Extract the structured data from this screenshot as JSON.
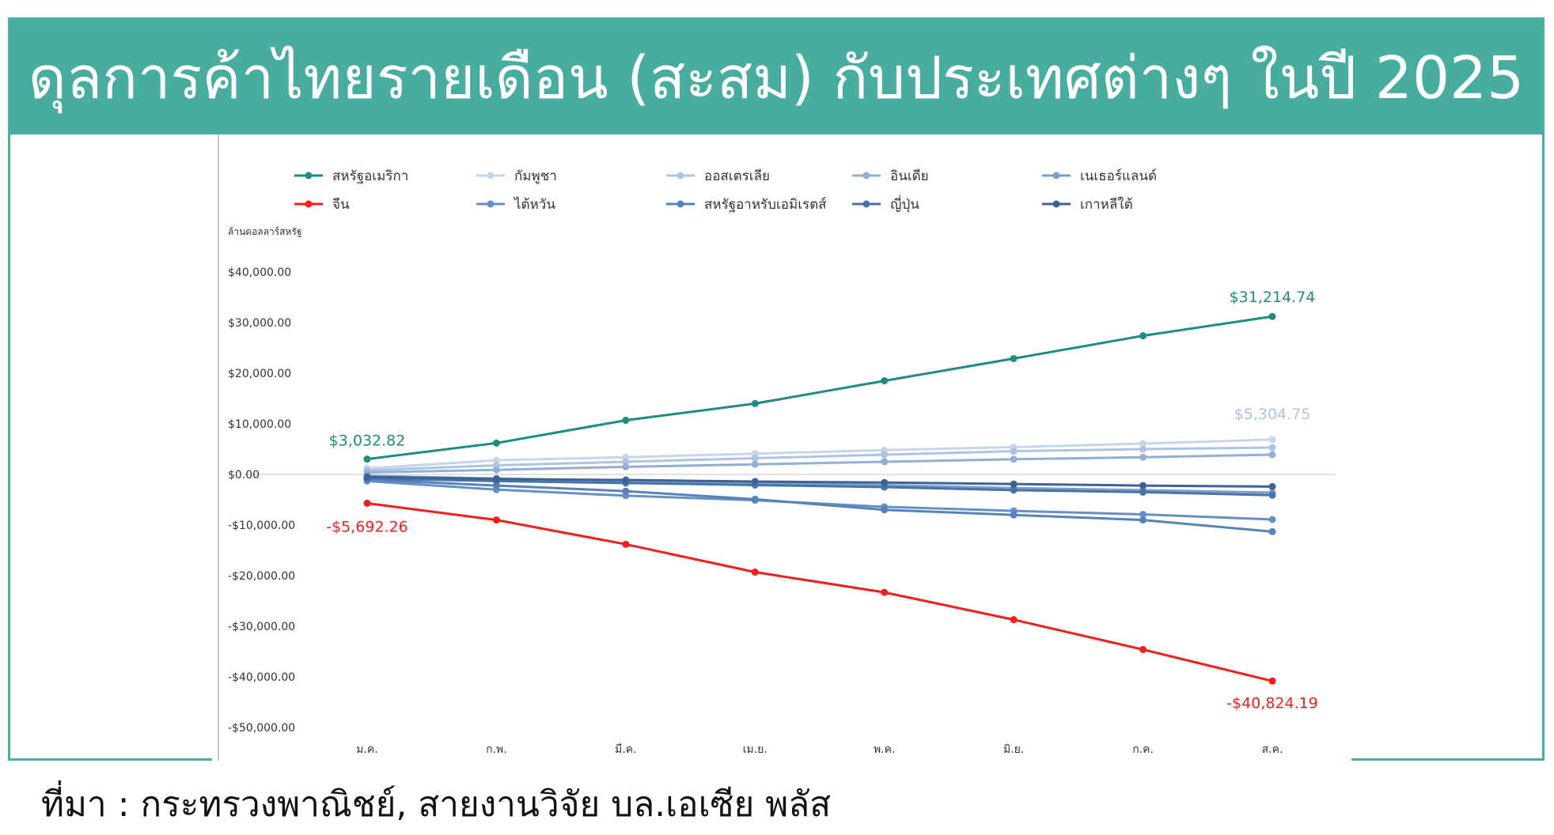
{
  "title": "ดุลการค้าไทยรายเดือน (สะสม) กับประเทศต่างๆ ในปี 2025",
  "source": "ที่มา : กระทรวงพาณิชย์, สายงานวิจัย บล.เอเซีย พลัส",
  "colors": {
    "title_bar": "#48ad9f",
    "usa": "#1e8c80",
    "china": "#f51d1d"
  },
  "chart_data": {
    "type": "line",
    "ylabel": "ล้านดอลลาร์สหรัฐ",
    "categories": [
      "ม.ค.",
      "ก.พ.",
      "มี.ค.",
      "เม.ย.",
      "พ.ค.",
      "มิ.ย.",
      "ก.ค.",
      "ส.ค."
    ],
    "ylim": [
      -50000,
      40000
    ],
    "yticks": [
      {
        "value": 40000,
        "label": "$40,000.00"
      },
      {
        "value": 30000,
        "label": "$30,000.00"
      },
      {
        "value": 20000,
        "label": "$20,000.00"
      },
      {
        "value": 10000,
        "label": "$10,000.00"
      },
      {
        "value": 0,
        "label": "$0.00"
      },
      {
        "value": -10000,
        "label": "-$10,000.00"
      },
      {
        "value": -20000,
        "label": "-$20,000.00"
      },
      {
        "value": -30000,
        "label": "-$30,000.00"
      },
      {
        "value": -40000,
        "label": "-$40,000.00"
      },
      {
        "value": -50000,
        "label": "-$50,000.00"
      }
    ],
    "legend_position": "top",
    "grid": false,
    "series": [
      {
        "name": "สหรัฐอเมริกา",
        "color": "#1e8c80",
        "values": [
          3032.82,
          6200,
          10700,
          14000,
          18500,
          22900,
          27400,
          31214.74
        ]
      },
      {
        "name": "กัมพูชา",
        "color": "#c5d5ec",
        "values": [
          1200,
          2800,
          3400,
          4100,
          4800,
          5400,
          6100,
          6900
        ]
      },
      {
        "name": "ออสเตรเลีย",
        "color": "#aec3e2",
        "values": [
          800,
          1800,
          2500,
          3200,
          3900,
          4600,
          5000,
          5304.75
        ]
      },
      {
        "name": "อินเดีย",
        "color": "#93afd6",
        "values": [
          400,
          900,
          1500,
          2000,
          2500,
          3000,
          3400,
          3900
        ]
      },
      {
        "name": "เนเธอร์แลนด์",
        "color": "#7b9dcc",
        "values": [
          -300,
          -800,
          -1300,
          -1700,
          -2100,
          -2700,
          -3100,
          -3600
        ]
      },
      {
        "name": "จีน",
        "color": "#f51d1d",
        "values": [
          -5692.26,
          -9000,
          -13800,
          -19300,
          -23300,
          -28700,
          -34600,
          -40824.19
        ]
      },
      {
        "name": "ไต้หวัน",
        "color": "#6690c4",
        "values": [
          -1300,
          -3000,
          -4200,
          -5100,
          -6400,
          -7200,
          -7900,
          -8900
        ]
      },
      {
        "name": "สหรัฐอาหรับเอมิเรตส์",
        "color": "#5682bc",
        "values": [
          -1000,
          -2200,
          -3300,
          -4900,
          -7000,
          -8000,
          -9000,
          -11300
        ]
      },
      {
        "name": "ญี่ปุ่น",
        "color": "#4873aa",
        "values": [
          -800,
          -1300,
          -1700,
          -2100,
          -2500,
          -3100,
          -3500,
          -4100
        ]
      },
      {
        "name": "เกาหลีใต้",
        "color": "#3d6395",
        "values": [
          -500,
          -900,
          -1100,
          -1400,
          -1600,
          -1900,
          -2200,
          -2400
        ]
      }
    ],
    "annotations": [
      {
        "text": "$3,032.82",
        "series": "สหรัฐอเมริกา",
        "point": "ม.ค.",
        "color": "#1e8c80"
      },
      {
        "text": "$31,214.74",
        "series": "สหรัฐอเมริกา",
        "point": "ส.ค.",
        "color": "#1e8c80"
      },
      {
        "text": "$5,304.75",
        "series": "ออสเตรเลีย",
        "point": "ส.ค.",
        "color": "#aec3e2"
      },
      {
        "text": "-$5,692.26",
        "series": "จีน",
        "point": "ม.ค.",
        "color": "#f51d1d"
      },
      {
        "text": "-$40,824.19",
        "series": "จีน",
        "point": "ส.ค.",
        "color": "#f51d1d"
      }
    ]
  }
}
